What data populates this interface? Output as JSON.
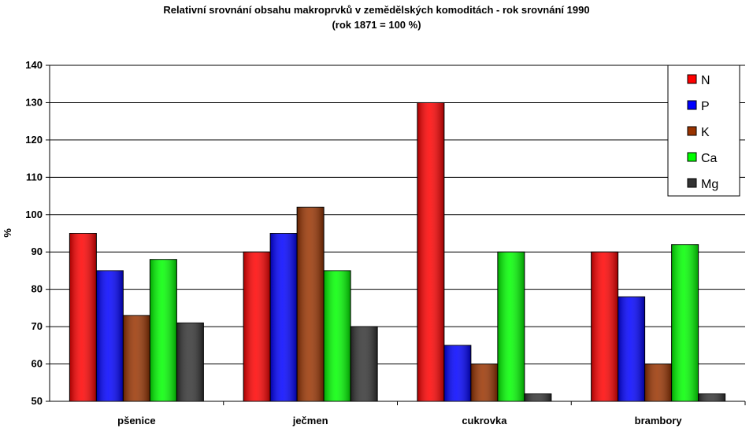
{
  "chart_data": {
    "type": "bar",
    "title": "Relativní srovnání obsahu makroprvků v zemědělských komoditách - rok srovnání 1990",
    "subtitle": "(rok 1871 = 100 %)",
    "xlabel": "",
    "ylabel": "%",
    "ylim": [
      50,
      140
    ],
    "yticks": [
      50,
      60,
      70,
      80,
      90,
      100,
      110,
      120,
      130,
      140
    ],
    "grid": true,
    "legend_position": "top-right",
    "categories": [
      "pšenice",
      "ječmen",
      "cukrovka",
      "brambory"
    ],
    "series": [
      {
        "name": "N",
        "color": "#ff0000",
        "values": [
          95,
          90,
          130,
          90
        ]
      },
      {
        "name": "P",
        "color": "#0000ff",
        "values": [
          85,
          95,
          65,
          78
        ]
      },
      {
        "name": "K",
        "color": "#993300",
        "values": [
          73,
          102,
          60,
          60
        ]
      },
      {
        "name": "Ca",
        "color": "#00ff00",
        "values": [
          88,
          85,
          90,
          92
        ]
      },
      {
        "name": "Mg",
        "color": "#333333",
        "values": [
          71,
          70,
          52,
          52
        ]
      }
    ]
  }
}
